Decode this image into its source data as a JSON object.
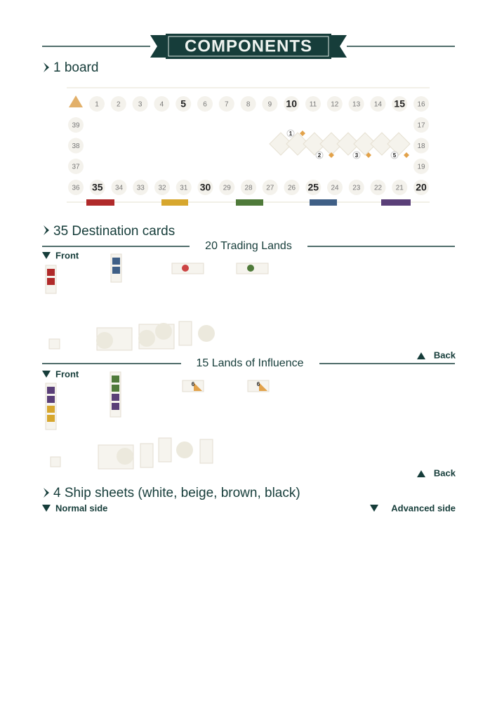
{
  "header": {
    "title": "COMPONENTS"
  },
  "sections": [
    {
      "heading": "1 board",
      "board": {
        "track": [
          1,
          2,
          3,
          4,
          5,
          6,
          7,
          8,
          9,
          10,
          11,
          12,
          13,
          14,
          15,
          16,
          17,
          18,
          19,
          20,
          21,
          22,
          23,
          24,
          25,
          26,
          27,
          28,
          29,
          30,
          31,
          32,
          33,
          34,
          35,
          36,
          37,
          38,
          39
        ],
        "bonus_labels": [
          1,
          2,
          3,
          5
        ]
      }
    },
    {
      "heading": "35 Destination cards",
      "groups": [
        {
          "title": "20 Trading Lands",
          "front": "Front",
          "back": "Back"
        },
        {
          "title": "15 Lands of Influence",
          "front": "Front",
          "back": "Back",
          "card_labels": [
            6,
            6
          ]
        }
      ]
    },
    {
      "heading": "4 Ship sheets (white, beige, brown, black)",
      "sides": [
        "Normal side",
        "Advanced side"
      ]
    }
  ]
}
